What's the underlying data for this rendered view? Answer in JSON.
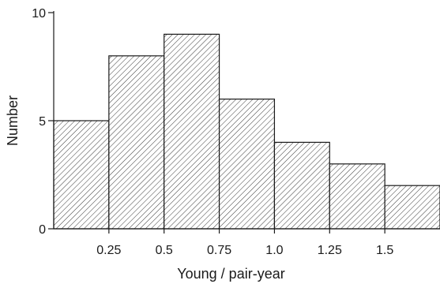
{
  "chart_data": {
    "type": "bar",
    "xlabel": "Young / pair-year",
    "ylabel": "Number",
    "bins": [
      {
        "x0": 0.0,
        "x1": 0.25,
        "value": 5
      },
      {
        "x0": 0.25,
        "x1": 0.5,
        "value": 8
      },
      {
        "x0": 0.5,
        "x1": 0.75,
        "value": 9
      },
      {
        "x0": 0.75,
        "x1": 1.0,
        "value": 6
      },
      {
        "x0": 1.0,
        "x1": 1.25,
        "value": 4
      },
      {
        "x0": 1.25,
        "x1": 1.5,
        "value": 3
      },
      {
        "x0": 1.5,
        "x1": 1.75,
        "value": 2
      }
    ],
    "x_ticks": [
      {
        "value": 0.25,
        "label": "0.25"
      },
      {
        "value": 0.5,
        "label": "0.5"
      },
      {
        "value": 0.75,
        "label": "0.75"
      },
      {
        "value": 1.0,
        "label": "1.0"
      },
      {
        "value": 1.25,
        "label": "1.25"
      },
      {
        "value": 1.5,
        "label": "1.5"
      }
    ],
    "y_ticks": [
      {
        "value": 0,
        "label": "0"
      },
      {
        "value": 5,
        "label": "5"
      },
      {
        "value": 10,
        "label": "10"
      }
    ],
    "xlim": [
      0,
      1.75
    ],
    "ylim": [
      0,
      10
    ],
    "fill_pattern": "diagonal-hatch",
    "grid": false,
    "legend": "none"
  }
}
